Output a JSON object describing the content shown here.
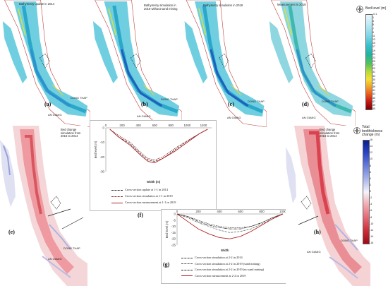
{
  "top_panels": [
    {
      "label": "(a)",
      "title": "Bathymetry update in 2014"
    },
    {
      "label": "(b)",
      "title": "Bathymetry simulation in 2019 without sand mining"
    },
    {
      "label": "(c)",
      "title": "Bathymetry simulation in 2019"
    },
    {
      "label": "(d)",
      "title": "Measurement in 2019"
    }
  ],
  "places": {
    "dong_thap": "DONG THAP",
    "an_giang": "AN GIANG"
  },
  "bed_level_legend": {
    "title": "Bed level (m)",
    "ticks": [
      "-0.1",
      "1",
      "3",
      "5",
      "7",
      "9",
      "11",
      "13",
      "15",
      "17",
      "19",
      "21",
      "23",
      "25",
      "27",
      "29",
      "31",
      "33",
      "35",
      "37",
      "39",
      "41",
      "43",
      "45",
      "47",
      "49",
      "55"
    ]
  },
  "panel_e": {
    "label": "(e)",
    "title": "Bed change simulation from 2016 to 2014"
  },
  "panel_h": {
    "label": "(h)",
    "title": "Bed change simulation from 2016 to 2014"
  },
  "thickness_legend": {
    "title": "Total bedthickness change (m)",
    "ticks": [
      "16",
      "14",
      "12",
      "10",
      "8",
      "6",
      "4",
      "2",
      "0",
      "-2",
      "-4",
      "-6",
      "-8",
      "-10",
      "-12",
      "-14",
      "-16"
    ]
  },
  "graph_f": {
    "label": "(f)",
    "ylabel": "Bed level (m)",
    "xlabel": "Width (m)",
    "xticks": [
      "0",
      "200",
      "400",
      "600",
      "800",
      "1000",
      "1200"
    ],
    "yticks": [
      "0",
      "-10",
      "-20",
      "-30"
    ],
    "legend": [
      "Cross-section update at 1-1 in 2014",
      "Cross-section simulation at 1-1 in 2019",
      "Cross-section measurement at 1-1 in 2019"
    ]
  },
  "graph_g": {
    "label": "(g)",
    "ylabel": "Bed level (m)",
    "xlabel": "Width",
    "xticks": [
      "0",
      "200",
      "400",
      "600",
      "800",
      "1000"
    ],
    "yticks": [
      "0",
      "-5",
      "-10",
      "-15",
      "-20",
      "-25"
    ],
    "legend": [
      "Cross-section simulation at 2-2 in 2014",
      "Cross-section simulation at 2-2 in 2019 (sand mining)",
      "Cross-section simulation at 2-2 in 2019 (no sand mining)",
      "Cross-section measurement at 2-2 in 2019"
    ]
  },
  "chart_data": [
    {
      "type": "line",
      "ylabel": "Bed level (m)",
      "xlabel": "Width (m)",
      "xlim": [
        0,
        1300
      ],
      "ylim": [
        -30,
        0
      ],
      "series": [
        {
          "name": "Cross-section update at 1-1 in 2014",
          "x": [
            50,
            150,
            300,
            450,
            520,
            600,
            700,
            850,
            1000,
            1150,
            1250
          ],
          "y": [
            -1,
            -6,
            -11,
            -19,
            -22,
            -23,
            -21,
            -15,
            -9,
            -4,
            -1
          ]
        },
        {
          "name": "Cross-section simulation at 1-1 in 2019",
          "x": [
            50,
            150,
            300,
            450,
            520,
            600,
            700,
            850,
            1000,
            1150,
            1250
          ],
          "y": [
            -1,
            -5,
            -10,
            -18,
            -21,
            -22,
            -20,
            -14,
            -9,
            -4,
            -1
          ]
        },
        {
          "name": "Cross-section measurement at 1-1 in 2019",
          "x": [
            50,
            150,
            300,
            450,
            520,
            600,
            700,
            850,
            1000,
            1150,
            1250
          ],
          "y": [
            -1,
            -6,
            -12,
            -20,
            -23,
            -24,
            -21,
            -16,
            -10,
            -4,
            -1
          ]
        }
      ]
    },
    {
      "type": "line",
      "ylabel": "Bed level (m)",
      "xlabel": "Width",
      "xlim": [
        0,
        1000
      ],
      "ylim": [
        -25,
        0
      ],
      "series": [
        {
          "name": "Cross-section simulation at 2-2 in 2014",
          "x": [
            0,
            100,
            200,
            300,
            400,
            500,
            600,
            700,
            800,
            900,
            1000
          ],
          "y": [
            0,
            -2,
            -5,
            -8,
            -10,
            -11,
            -11,
            -10,
            -7,
            -3,
            0
          ]
        },
        {
          "name": "Cross-section simulation at 2-2 in 2019 (sand mining)",
          "x": [
            0,
            100,
            200,
            300,
            400,
            500,
            600,
            700,
            800,
            900,
            1000
          ],
          "y": [
            0,
            -3,
            -7,
            -10,
            -13,
            -15,
            -14,
            -12,
            -8,
            -4,
            0
          ]
        },
        {
          "name": "Cross-section simulation at 2-2 in 2019 (no sand mining)",
          "x": [
            0,
            100,
            200,
            300,
            400,
            500,
            600,
            700,
            800,
            900,
            1000
          ],
          "y": [
            0,
            -2,
            -6,
            -9,
            -11,
            -12,
            -12,
            -10,
            -7,
            -3,
            0
          ]
        },
        {
          "name": "Cross-section measurement at 2-2 in 2019",
          "x": [
            0,
            100,
            200,
            300,
            400,
            500,
            600,
            700,
            800,
            900,
            1000
          ],
          "y": [
            0,
            -6,
            -12,
            -16,
            -19,
            -20,
            -18,
            -14,
            -9,
            -4,
            0
          ]
        }
      ]
    }
  ]
}
